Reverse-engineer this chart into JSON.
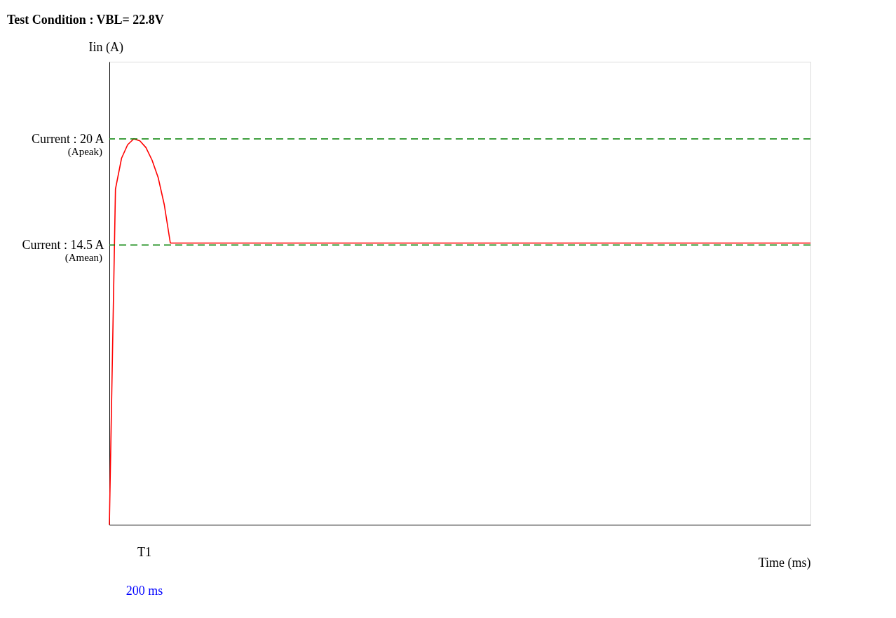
{
  "chart_data": {
    "type": "line",
    "title": "Test Condition : VBL= 22.8V",
    "xlabel": "Time (ms)",
    "ylabel": "Iin (A)",
    "categories": [
      null,
      null,
      null,
      null,
      null,
      null,
      null,
      null,
      null,
      null,
      null,
      null,
      null,
      null,
      null,
      null,
      null,
      null,
      null,
      null,
      null,
      null,
      null,
      null,
      null,
      null,
      null,
      null,
      null,
      null,
      null,
      null,
      null,
      null,
      null,
      null,
      null,
      null,
      null,
      null,
      null,
      null,
      null,
      null,
      null,
      null,
      null,
      null,
      null,
      null,
      null,
      null,
      null,
      null,
      null,
      null,
      null,
      null,
      null,
      null,
      null,
      null,
      null,
      null,
      null,
      null,
      null,
      null,
      null,
      null,
      null,
      null,
      null,
      null,
      null,
      null,
      null,
      null,
      null,
      null,
      null,
      null,
      null,
      null,
      null,
      null,
      null,
      null,
      null,
      null,
      null,
      null,
      null,
      null,
      null,
      null,
      null,
      null,
      null,
      null,
      null,
      null,
      null,
      null,
      null,
      null,
      null,
      null,
      null,
      null,
      null,
      null,
      null,
      null,
      null,
      null
    ],
    "series": [
      {
        "color": "#ff0000",
        "values": [
          0,
          17.4,
          19,
          19.7,
          20,
          19.9,
          19.55,
          18.9,
          18,
          16.6,
          14.6,
          14.6,
          14.6,
          14.6,
          14.6,
          14.6,
          14.6,
          14.6,
          14.6,
          14.6,
          14.6,
          14.6,
          14.6,
          14.6,
          14.6,
          14.6,
          14.6,
          14.6,
          14.6,
          14.6,
          14.6,
          14.6,
          14.6,
          14.6,
          14.6,
          14.6,
          14.6,
          14.6,
          14.6,
          14.6,
          14.6,
          14.6,
          14.6,
          14.6,
          14.6,
          14.6,
          14.6,
          14.6,
          14.6,
          14.6,
          14.6,
          14.6,
          14.6,
          14.6,
          14.6,
          14.6,
          14.6,
          14.6,
          14.6,
          14.6,
          14.6,
          14.6,
          14.6,
          14.6,
          14.6,
          14.6,
          14.6,
          14.6,
          14.6,
          14.6,
          14.6,
          14.6,
          14.6,
          14.6,
          14.6,
          14.6,
          14.6,
          14.6,
          14.6,
          14.6,
          14.6,
          14.6,
          14.6,
          14.6,
          14.6,
          14.6,
          14.6,
          14.6,
          14.6,
          14.6,
          14.6,
          14.6,
          14.6,
          14.6,
          14.6,
          14.6,
          14.6,
          14.6,
          14.6,
          14.6,
          14.6,
          14.6,
          14.6,
          14.6,
          14.6,
          14.6,
          14.6,
          14.6,
          14.6,
          14.6,
          14.6,
          14.6,
          14.6,
          14.6,
          14.6,
          14.6
        ]
      }
    ],
    "ylim": [
      0,
      24
    ],
    "yticks": [
      {
        "value": 14.5,
        "label": "Current : 14.5 A"
      },
      {
        "value": 20,
        "label": "Current : 20 A"
      }
    ],
    "tick_labels": "y",
    "grid": false,
    "line_style": "solid",
    "marker": "none",
    "ref_lines": [
      {
        "axis": "y",
        "value": 20,
        "label": "(Apeak)",
        "color": "#008000",
        "line_style": "dashed"
      },
      {
        "axis": "y",
        "value": 14.5,
        "label": "(Amean)",
        "color": "#008000",
        "line_style": "dashed"
      }
    ],
    "annotations": [
      "T1",
      "200 ms"
    ]
  }
}
